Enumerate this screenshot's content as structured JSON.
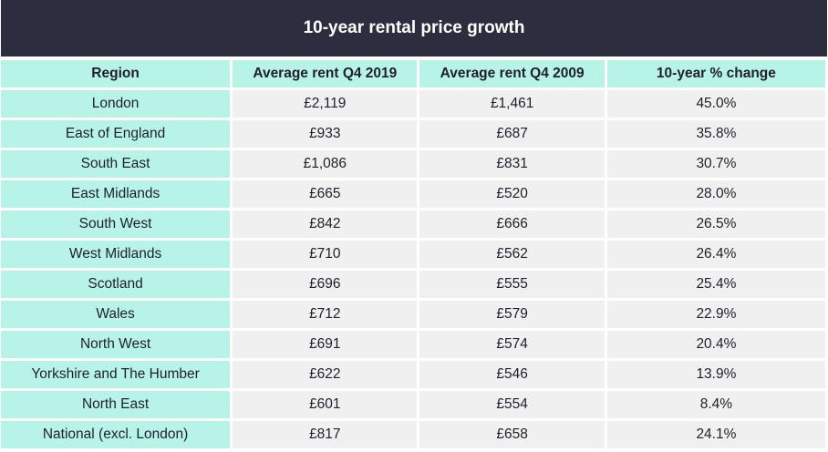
{
  "chart_data": {
    "type": "table",
    "title": "10-year rental price growth",
    "columns": [
      "Region",
      "Average rent Q4 2019",
      "Average rent Q4 2009",
      "10-year % change"
    ],
    "rows": [
      [
        "London",
        "£2,119",
        "£1,461",
        "45.0%"
      ],
      [
        "East of England",
        "£933",
        "£687",
        "35.8%"
      ],
      [
        "South East",
        "£1,086",
        "£831",
        "30.7%"
      ],
      [
        "East Midlands",
        "£665",
        "£520",
        "28.0%"
      ],
      [
        "South West",
        "£842",
        "£666",
        "26.5%"
      ],
      [
        "West Midlands",
        "£710",
        "£562",
        "26.4%"
      ],
      [
        "Scotland",
        "£696",
        "£555",
        "25.4%"
      ],
      [
        "Wales",
        "£712",
        "£579",
        "22.9%"
      ],
      [
        "North West",
        "£691",
        "£574",
        "20.4%"
      ],
      [
        "Yorkshire and The Humber",
        "£622",
        "£546",
        "13.9%"
      ],
      [
        "North East",
        "£601",
        "£554",
        "8.4%"
      ],
      [
        "National (excl. London)",
        "£817",
        "£658",
        "24.1%"
      ]
    ],
    "colors": {
      "title_bg": "#2c2d3f",
      "header_bg": "#b8f3e8",
      "cell_bg": "#f0f0f0"
    }
  }
}
